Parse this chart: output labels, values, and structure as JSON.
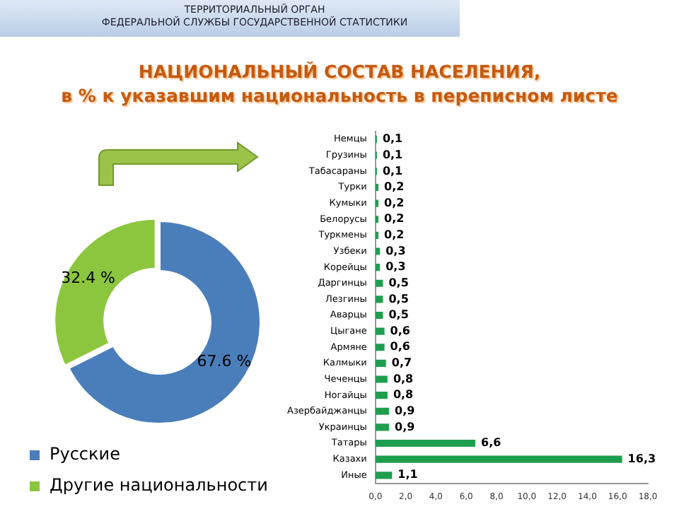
{
  "chart_data": [
    {
      "type": "donut",
      "title": "НАЦИОНАЛЬНЫЙ СОСТАВ НАСЕЛЕНИЯ,\nв % к указавшим национальность в переписном листе",
      "annotations": [
        "ТЕРРИТОРИАЛЬНЫЙ ОРГАН",
        "ФЕДЕРАЛЬНОЙ СЛУЖБЫ ГОСУДАРСТВЕННОЙ СТАТИСТИКИ"
      ],
      "categories": [
        "Русские",
        "Другие национальности"
      ],
      "values": [
        67.6,
        32.4
      ],
      "colors": [
        "#4a7ebb",
        "#8cc63f"
      ],
      "value_labels": [
        "67.6 %",
        "32.4 %"
      ],
      "legend": "bottom"
    },
    {
      "type": "bar",
      "orientation": "horizontal",
      "categories": [
        "Немцы",
        "Грузины",
        "Табасараны",
        "Турки",
        "Кумыки",
        "Белорусы",
        "Туркмены",
        "Узбеки",
        "Корейцы",
        "Даргинцы",
        "Лезгины",
        "Аварцы",
        "Цыгане",
        "Армяне",
        "Калмыки",
        "Чеченцы",
        "Ногайцы",
        "Азербайджанцы",
        "Украинцы",
        "Татары",
        "Казахи",
        "Иные"
      ],
      "values": [
        0.1,
        0.1,
        0.1,
        0.2,
        0.2,
        0.2,
        0.2,
        0.3,
        0.3,
        0.5,
        0.5,
        0.5,
        0.6,
        0.6,
        0.7,
        0.8,
        0.8,
        0.9,
        0.9,
        6.6,
        16.3,
        1.1
      ],
      "value_labels": [
        "0,1",
        "0,1",
        "0,1",
        "0,2",
        "0,2",
        "0,2",
        "0,2",
        "0,3",
        "0,3",
        "0,5",
        "0,5",
        "0,5",
        "0,6",
        "0,6",
        "0,7",
        "0,8",
        "0,8",
        "0,9",
        "0,9",
        "6,6",
        "16,3",
        "1,1"
      ],
      "color": "#1f9e4f",
      "xlim": [
        0,
        18
      ],
      "xticks": [
        {
          "value": 0,
          "label": "0,0"
        },
        {
          "value": 2,
          "label": "2,0"
        },
        {
          "value": 4,
          "label": "4,0"
        },
        {
          "value": 6,
          "label": "6,0"
        },
        {
          "value": 8,
          "label": "8,0"
        },
        {
          "value": 10,
          "label": "10,0"
        },
        {
          "value": 12,
          "label": "12,0"
        },
        {
          "value": 14,
          "label": "14,0"
        },
        {
          "value": 16,
          "label": "16,0"
        },
        {
          "value": 18,
          "label": "18,0"
        }
      ],
      "grid": false,
      "legend": false
    }
  ]
}
